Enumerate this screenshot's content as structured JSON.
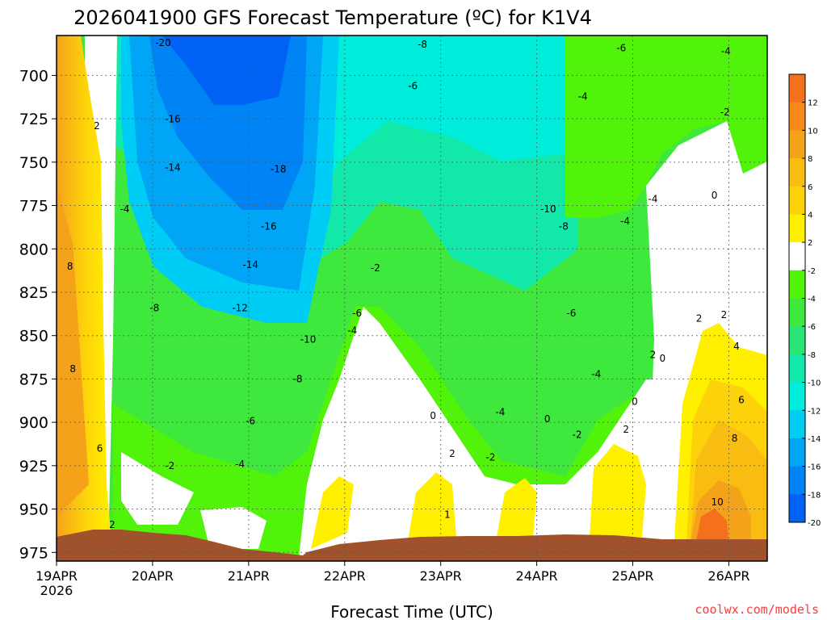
{
  "chart_data": {
    "type": "heatmap",
    "title": "2026041900 GFS Forecast Temperature (ºC) for K1V4",
    "xlabel": "Forecast Time (UTC)",
    "ylabel": "",
    "credit": "coolwx.com/models",
    "x_ticks": [
      {
        "label": "19APR",
        "sub": "2026",
        "day": 0
      },
      {
        "label": "20APR",
        "day": 1
      },
      {
        "label": "21APR",
        "day": 2
      },
      {
        "label": "22APR",
        "day": 3
      },
      {
        "label": "23APR",
        "day": 4
      },
      {
        "label": "24APR",
        "day": 5
      },
      {
        "label": "25APR",
        "day": 6
      },
      {
        "label": "26APR",
        "day": 7
      }
    ],
    "xlim_days": [
      0,
      7.4
    ],
    "y_ticks": [
      700,
      725,
      750,
      775,
      800,
      825,
      850,
      875,
      900,
      925,
      950,
      975
    ],
    "ylim_hpa": [
      677,
      980
    ],
    "colorbar": {
      "ticks": [
        12,
        10,
        8,
        6,
        4,
        2,
        -2,
        -4,
        -6,
        -8,
        -10,
        -12,
        -14,
        -16,
        -18,
        -20
      ],
      "bins": [
        {
          "range": "> 12",
          "color": "#f5701b"
        },
        {
          "range": "10 to 12",
          "color": "#f58a1b"
        },
        {
          "range": "8 to 10",
          "color": "#f5a21b"
        },
        {
          "range": "6 to 8",
          "color": "#f9bd12"
        },
        {
          "range": "4 to 6",
          "color": "#fdd20a"
        },
        {
          "range": "2 to 4",
          "color": "#fff000"
        },
        {
          "range": "-2 to 2",
          "color": "#ffffff"
        },
        {
          "range": "-4 to -2",
          "color": "#51f30a"
        },
        {
          "range": "-6 to -4",
          "color": "#3fe83c"
        },
        {
          "range": "-8 to -6",
          "color": "#2be476"
        },
        {
          "range": "-10 to -8",
          "color": "#12e8a8"
        },
        {
          "range": "-12 to -10",
          "color": "#00eddb"
        },
        {
          "range": "-14 to -12",
          "color": "#00cdf5"
        },
        {
          "range": "-16 to -14",
          "color": "#00a6f5"
        },
        {
          "range": "-18 to -16",
          "color": "#0083f5"
        },
        {
          "range": "< -20",
          "color": "#0061f5"
        }
      ]
    },
    "contour_labels": [
      {
        "text": "2",
        "day": 0.42,
        "p": 731
      },
      {
        "text": "8",
        "day": 0.14,
        "p": 812
      },
      {
        "text": "8",
        "day": 0.17,
        "p": 871
      },
      {
        "text": "6",
        "day": 0.45,
        "p": 917
      },
      {
        "text": "2",
        "day": 0.58,
        "p": 961
      },
      {
        "text": "-4",
        "day": 0.71,
        "p": 779
      },
      {
        "text": "-20",
        "day": 1.11,
        "p": 683
      },
      {
        "text": "-16",
        "day": 1.21,
        "p": 727
      },
      {
        "text": "-14",
        "day": 1.21,
        "p": 755
      },
      {
        "text": "-8",
        "day": 1.02,
        "p": 836
      },
      {
        "text": "-2",
        "day": 1.18,
        "p": 927
      },
      {
        "text": "-18",
        "day": 2.31,
        "p": 756
      },
      {
        "text": "-16",
        "day": 2.21,
        "p": 789
      },
      {
        "text": "-14",
        "day": 2.02,
        "p": 811
      },
      {
        "text": "-12",
        "day": 1.91,
        "p": 836
      },
      {
        "text": "-10",
        "day": 2.62,
        "p": 854
      },
      {
        "text": "-8",
        "day": 2.51,
        "p": 877
      },
      {
        "text": "-6",
        "day": 2.02,
        "p": 901
      },
      {
        "text": "-4",
        "day": 1.91,
        "p": 926
      },
      {
        "text": "-8",
        "day": 3.81,
        "p": 684
      },
      {
        "text": "-6",
        "day": 3.71,
        "p": 708
      },
      {
        "text": "-2",
        "day": 3.32,
        "p": 813
      },
      {
        "text": "-6",
        "day": 3.13,
        "p": 839
      },
      {
        "text": "-4",
        "day": 3.08,
        "p": 849
      },
      {
        "text": "0",
        "day": 3.92,
        "p": 898
      },
      {
        "text": "2",
        "day": 4.12,
        "p": 920
      },
      {
        "text": "1",
        "day": 4.07,
        "p": 955
      },
      {
        "text": "-10",
        "day": 5.12,
        "p": 779
      },
      {
        "text": "-8",
        "day": 5.28,
        "p": 789
      },
      {
        "text": "-6",
        "day": 5.36,
        "p": 839
      },
      {
        "text": "-4",
        "day": 5.48,
        "p": 714
      },
      {
        "text": "-4",
        "day": 4.62,
        "p": 896
      },
      {
        "text": "-2",
        "day": 4.52,
        "p": 922
      },
      {
        "text": "0",
        "day": 5.11,
        "p": 900
      },
      {
        "text": "-2",
        "day": 5.42,
        "p": 909
      },
      {
        "text": "-4",
        "day": 5.62,
        "p": 874
      },
      {
        "text": "-6",
        "day": 5.88,
        "p": 686
      },
      {
        "text": "-4",
        "day": 5.92,
        "p": 786
      },
      {
        "text": "-4",
        "day": 6.21,
        "p": 773
      },
      {
        "text": "2",
        "day": 6.21,
        "p": 863
      },
      {
        "text": "0",
        "day": 6.31,
        "p": 865
      },
      {
        "text": "0",
        "day": 6.02,
        "p": 890
      },
      {
        "text": "2",
        "day": 5.93,
        "p": 906
      },
      {
        "text": "-4",
        "day": 6.97,
        "p": 688
      },
      {
        "text": "-2",
        "day": 6.96,
        "p": 723
      },
      {
        "text": "0",
        "day": 6.85,
        "p": 771
      },
      {
        "text": "2",
        "day": 6.69,
        "p": 842
      },
      {
        "text": "2",
        "day": 6.95,
        "p": 840
      },
      {
        "text": "4",
        "day": 7.08,
        "p": 858
      },
      {
        "text": "6",
        "day": 7.13,
        "p": 889
      },
      {
        "text": "8",
        "day": 7.06,
        "p": 911
      },
      {
        "text": "10",
        "day": 6.88,
        "p": 948
      }
    ]
  }
}
